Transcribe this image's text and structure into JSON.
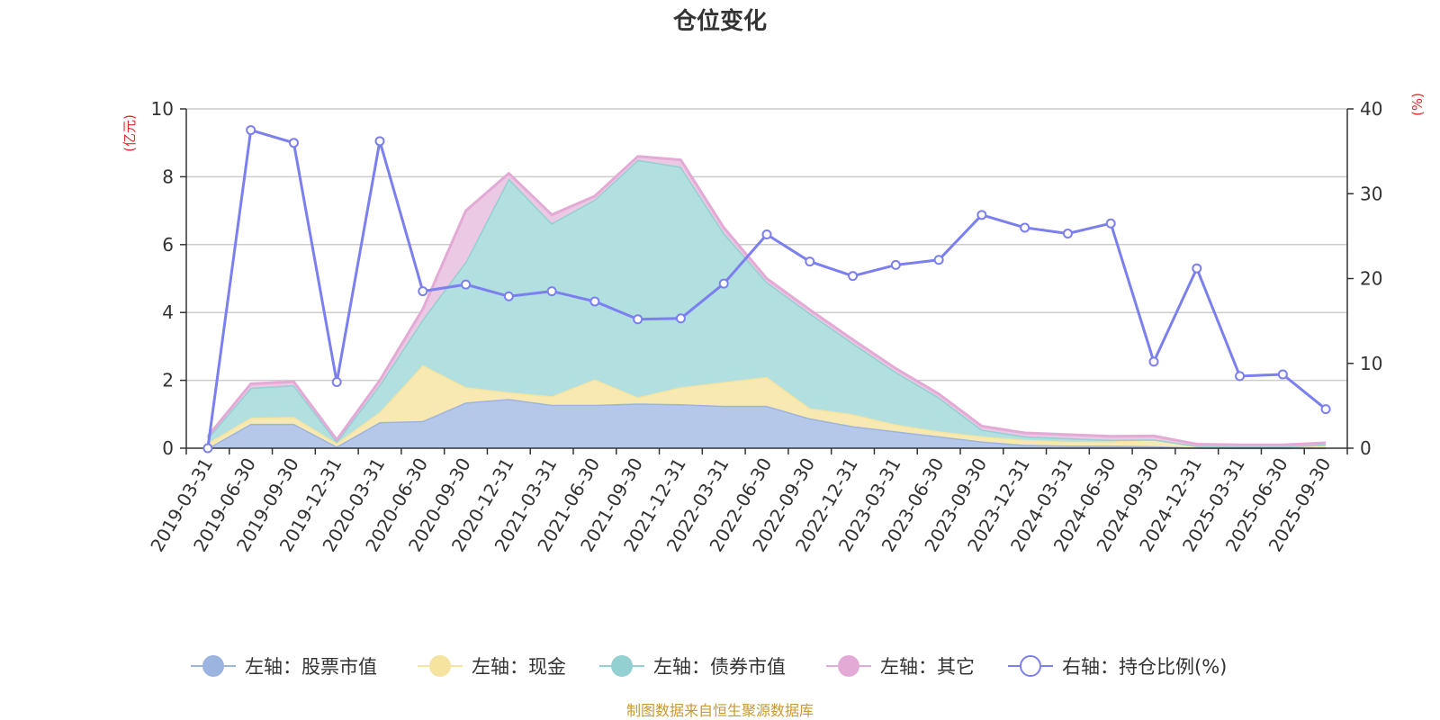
{
  "chart_data": {
    "type": "area",
    "title": "仓位变化",
    "categories": [
      "2019-03-31",
      "2019-06-30",
      "2019-09-30",
      "2019-12-31",
      "2020-03-31",
      "2020-06-30",
      "2020-09-30",
      "2020-12-31",
      "2021-03-31",
      "2021-06-30",
      "2021-09-30",
      "2021-12-31",
      "2022-03-31",
      "2022-06-30",
      "2022-09-30",
      "2022-12-31",
      "2023-03-31",
      "2023-06-30",
      "2023-09-30",
      "2023-12-31",
      "2024-03-31",
      "2024-06-30",
      "2024-09-30",
      "2024-12-31",
      "2025-03-31",
      "2025-06-30",
      "2025-09-30"
    ],
    "left_axis": {
      "unit_label": "(亿元)",
      "ylim": [
        0,
        10
      ],
      "ticks": [
        "0",
        "2",
        "4",
        "6",
        "8",
        "10"
      ]
    },
    "right_axis": {
      "unit_label": "(%)",
      "ylim": [
        0,
        40
      ],
      "ticks": [
        "0",
        "10",
        "20",
        "30",
        "40"
      ]
    },
    "series": [
      {
        "name": "左轴：股票市值",
        "axis": "left",
        "kind": "stacked-area",
        "color": "#9cb4e0",
        "fill": "#b6c8ea",
        "values": [
          0.0,
          0.72,
          0.72,
          0.05,
          0.77,
          0.8,
          1.35,
          1.45,
          1.28,
          1.28,
          1.32,
          1.3,
          1.25,
          1.25,
          0.88,
          0.65,
          0.5,
          0.35,
          0.2,
          0.1,
          0.08,
          0.08,
          0.06,
          0.02,
          0.01,
          0.01,
          0.01
        ]
      },
      {
        "name": "左轴：现金",
        "axis": "left",
        "kind": "stacked-area",
        "color": "#f5e3a0",
        "fill": "#f8e9b2",
        "values": [
          0.15,
          0.18,
          0.2,
          0.1,
          0.3,
          1.65,
          0.45,
          0.2,
          0.25,
          0.75,
          0.18,
          0.5,
          0.7,
          0.85,
          0.3,
          0.35,
          0.2,
          0.15,
          0.15,
          0.15,
          0.12,
          0.12,
          0.2,
          0.05,
          0.04,
          0.04,
          0.1
        ]
      },
      {
        "name": "左轴：债券市值",
        "axis": "left",
        "kind": "stacked-area",
        "color": "#93d0d2",
        "fill": "#b2dfdf",
        "values": [
          0.15,
          0.88,
          0.94,
          0.05,
          0.8,
          1.35,
          3.7,
          6.3,
          5.1,
          5.3,
          7.0,
          6.5,
          4.4,
          2.8,
          2.8,
          2.1,
          1.55,
          1.0,
          0.2,
          0.1,
          0.1,
          0.05,
          0.0,
          0.0,
          0.0,
          0.0,
          0.0
        ]
      },
      {
        "name": "左轴：其它",
        "axis": "left",
        "kind": "stacked-area",
        "color": "#e3aad6",
        "fill": "#ebc8e3",
        "values": [
          0.05,
          0.12,
          0.1,
          0.05,
          0.13,
          0.3,
          1.5,
          0.15,
          0.25,
          0.1,
          0.1,
          0.2,
          0.15,
          0.1,
          0.1,
          0.1,
          0.1,
          0.1,
          0.1,
          0.1,
          0.1,
          0.1,
          0.1,
          0.05,
          0.05,
          0.05,
          0.05
        ]
      },
      {
        "name": "右轴：持仓比例(%)",
        "axis": "right",
        "kind": "line",
        "color": "#7b7ff0",
        "values": [
          0.0,
          37.5,
          36.0,
          7.8,
          36.2,
          18.5,
          19.3,
          17.9,
          18.5,
          17.3,
          15.2,
          15.3,
          19.4,
          25.2,
          22.0,
          20.3,
          21.6,
          22.2,
          27.5,
          26.0,
          25.3,
          26.5,
          10.2,
          21.2,
          8.5,
          8.7,
          4.6
        ]
      }
    ]
  },
  "footer": {
    "source": "制图数据来自恒生聚源数据库"
  },
  "colors": {
    "axis_unit": "#e8262a",
    "source_text": "#c99a2e",
    "grid": "#cccccc",
    "axis": "#333333"
  }
}
